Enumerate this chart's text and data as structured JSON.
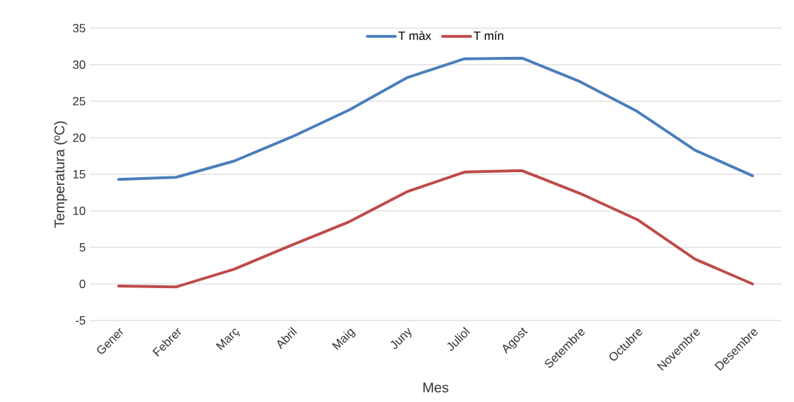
{
  "chart_data": {
    "type": "line",
    "xlabel": "Mes",
    "ylabel": "Temperatura (ºC)",
    "categories": [
      "Gener",
      "Febrer",
      "Març",
      "Abril",
      "Maig",
      "Juny",
      "Juliol",
      "Agost",
      "Setembre",
      "Octubre",
      "Novembre",
      "Desembre"
    ],
    "series": [
      {
        "name": "T màx",
        "color": "#4a7ebb",
        "values": [
          14.3,
          14.6,
          16.8,
          20.1,
          23.8,
          28.2,
          30.8,
          30.9,
          27.7,
          23.6,
          18.3,
          14.8
        ]
      },
      {
        "name": "T mín",
        "color": "#be4b48",
        "values": [
          -0.3,
          -0.4,
          2.0,
          5.3,
          8.5,
          12.6,
          15.3,
          15.5,
          12.4,
          8.8,
          3.4,
          0.0
        ]
      }
    ],
    "ylim": [
      -5,
      35
    ],
    "yticks": [
      -5,
      0,
      5,
      10,
      15,
      20,
      25,
      30,
      35
    ],
    "grid": "y",
    "legend": "top"
  }
}
